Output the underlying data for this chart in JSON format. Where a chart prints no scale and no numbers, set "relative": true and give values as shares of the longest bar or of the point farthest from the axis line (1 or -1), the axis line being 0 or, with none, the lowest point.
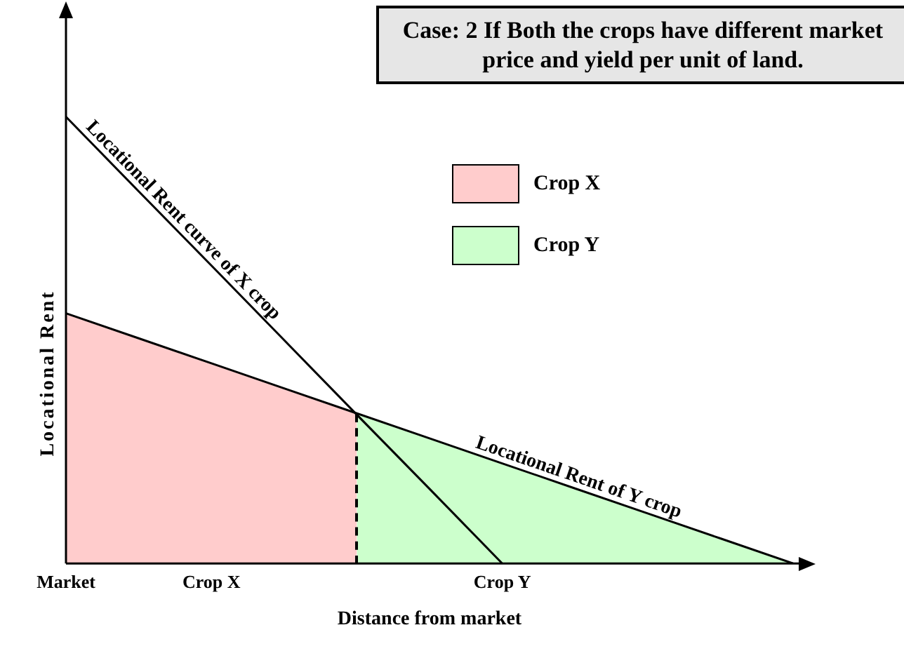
{
  "chart_data": {
    "type": "area",
    "title": "Case: 2 If Both the crops have different market price and yield per unit of land.",
    "xlabel": "Distance from market",
    "ylabel": "Locational Rent",
    "relative": true,
    "grid": false,
    "legend": "top right",
    "categories": [
      "Market",
      null,
      "Crop X",
      null,
      null,
      null,
      "Crop Y",
      null,
      null,
      null,
      null
    ],
    "series": [
      {
        "name": "Crop X",
        "type": "area",
        "color": "#ffcccc",
        "line_style": "dashed",
        "values": [
          0.56,
          0.504,
          0.448,
          0.392,
          0.336,
          null,
          null,
          null,
          null,
          null,
          null
        ]
      },
      {
        "name": "Crop Y",
        "color": "#ccffcc",
        "values": [
          null,
          null,
          null,
          null,
          0.336,
          0.28,
          0.224,
          0.168,
          0.112,
          0.056,
          0
        ]
      },
      {
        "name": "Locational Rent curve of X crop",
        "type": "line",
        "color": "#000000",
        "values": [
          1,
          0.833,
          0.667,
          0.5,
          0.333,
          0.167,
          0,
          null,
          null,
          null,
          null
        ]
      },
      {
        "name": "Locational Rent of Y crop",
        "type": "line",
        "color": "#000000",
        "values": [
          0.56,
          0.504,
          0.448,
          0.392,
          0.336,
          0.28,
          0.224,
          0.168,
          0.112,
          0.056,
          0
        ]
      }
    ]
  }
}
